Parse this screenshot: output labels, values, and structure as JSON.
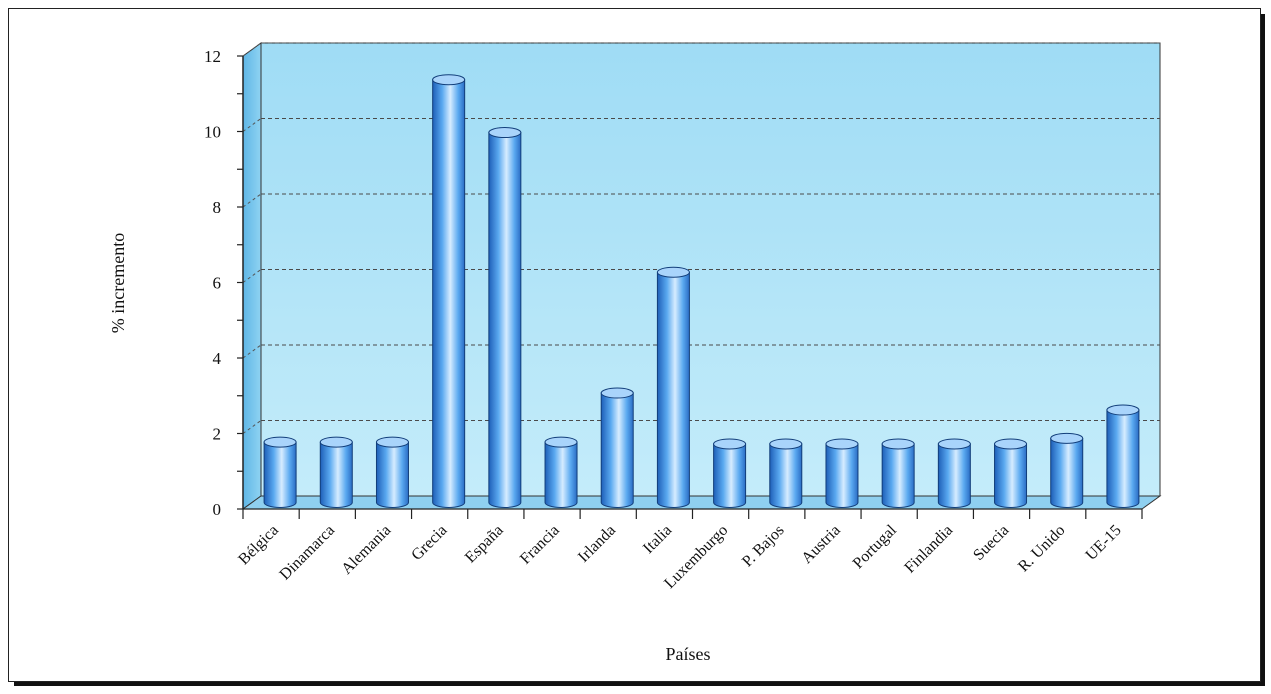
{
  "chart_data": {
    "type": "bar",
    "style": "3d-cylinder",
    "categories": [
      "Bélgica",
      "Dinamarca",
      "Alemania",
      "Grecia",
      "España",
      "Francia",
      "Irlanda",
      "Italia",
      "Luxemburgo",
      "P. Bajos",
      "Austria",
      "Portugal",
      "Finlandia",
      "Suecia",
      "R. Unido",
      "UE-15"
    ],
    "values": [
      1.6,
      1.6,
      1.6,
      11.2,
      9.8,
      1.6,
      2.9,
      6.1,
      1.55,
      1.55,
      1.55,
      1.55,
      1.55,
      1.55,
      1.7,
      2.45
    ],
    "xlabel": "Países",
    "ylabel": "% incremento",
    "ylim": [
      0,
      12
    ],
    "yticks": [
      "0",
      "2",
      "4",
      "6",
      "8",
      "10",
      "12"
    ],
    "grid": "horizontal-dashed",
    "colors": {
      "bar": "#5aa9f0",
      "bar_light": "#d6ecff",
      "bar_dark": "#1e5fb8",
      "back_wall": "#aee3f7",
      "side_wall": "#7fc9ee",
      "floor": "#8fd0f0"
    }
  }
}
